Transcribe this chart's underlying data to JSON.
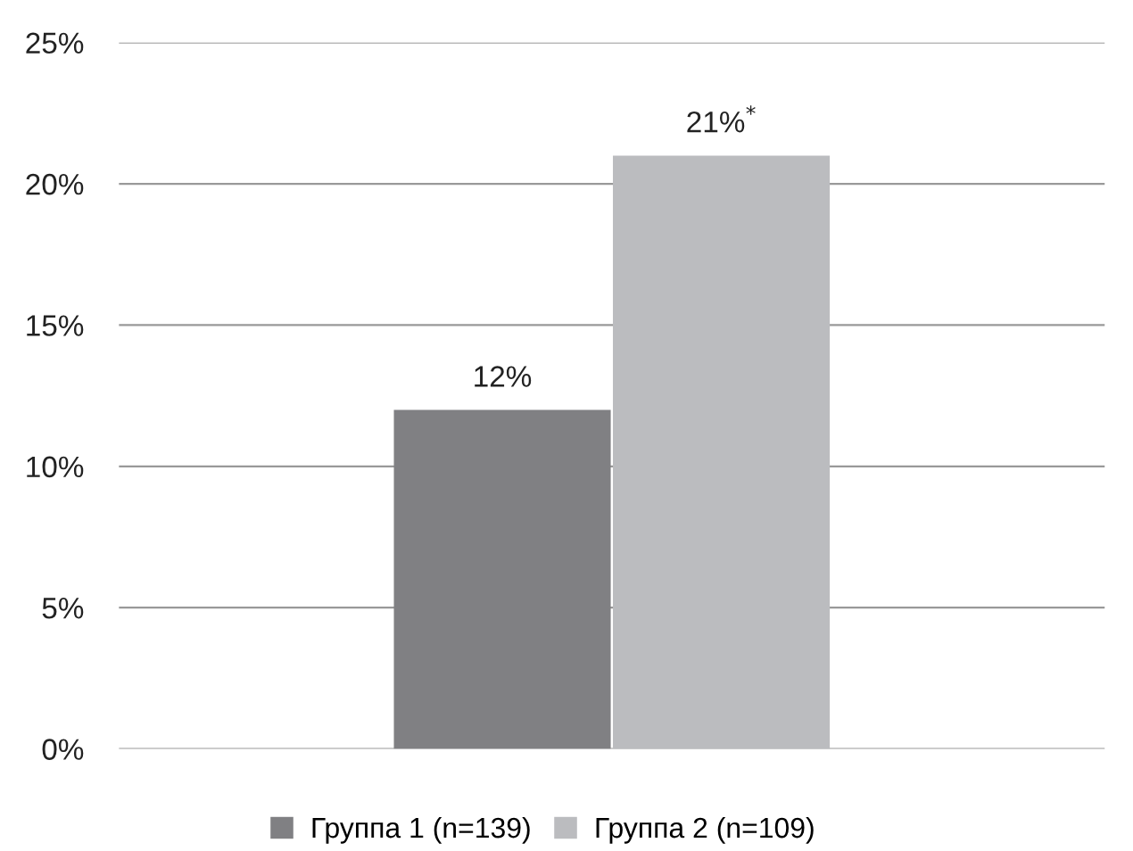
{
  "chart_data": {
    "type": "bar",
    "categories": [
      null
    ],
    "series": [
      {
        "name": "Группа 1 (n=139)",
        "color": "#808083",
        "values": [
          12
        ],
        "value_labels": [
          "12%"
        ]
      },
      {
        "name": "Группа 2 (n=109)",
        "color": "#bbbcbf",
        "values": [
          21
        ],
        "value_labels": [
          "21%$^{*}$"
        ]
      }
    ],
    "ylim": [
      0,
      25
    ],
    "yticks": [
      {
        "value": 0,
        "label": "0%"
      },
      {
        "value": 5,
        "label": "5%"
      },
      {
        "value": 10,
        "label": "10%"
      },
      {
        "value": 15,
        "label": "15%"
      },
      {
        "value": 20,
        "label": "20%"
      },
      {
        "value": 25,
        "label": "25%"
      }
    ],
    "grid": "y",
    "legend": "bottom"
  }
}
